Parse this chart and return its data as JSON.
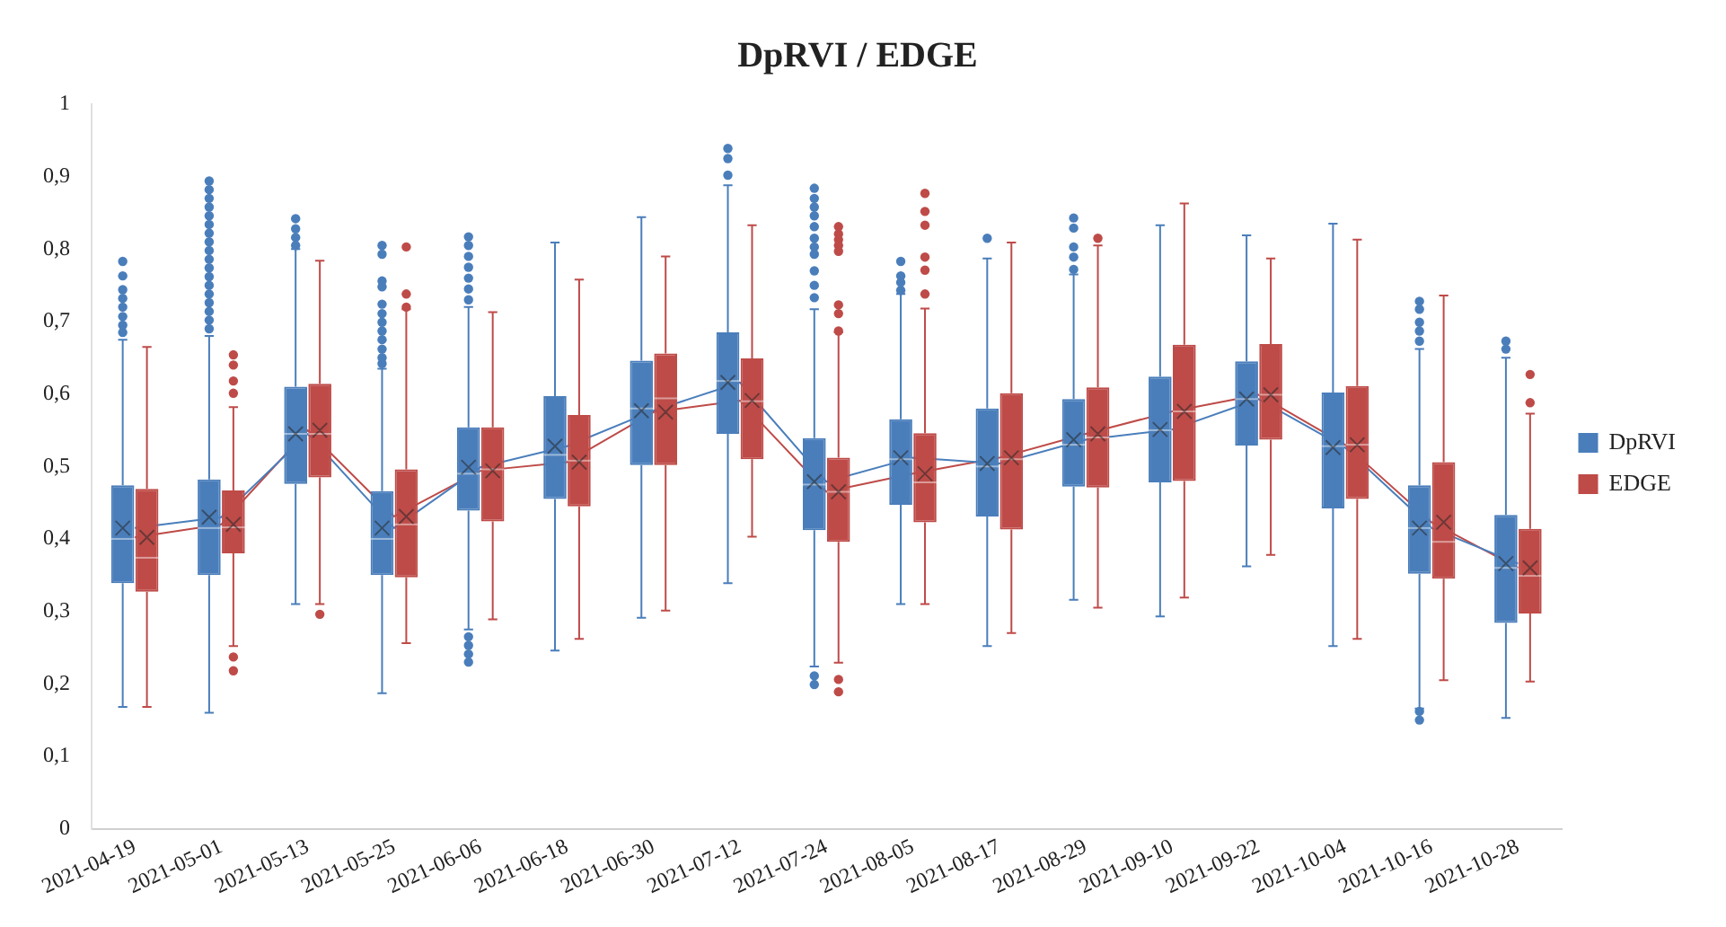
{
  "chart_data": {
    "type": "box",
    "title": "DpRVI / EDGE",
    "categories": [
      "2021-04-19",
      "2021-05-01",
      "2021-05-13",
      "2021-05-25",
      "2021-06-06",
      "2021-06-18",
      "2021-06-30",
      "2021-07-12",
      "2021-07-24",
      "2021-08-05",
      "2021-08-17",
      "2021-08-29",
      "2021-09-10",
      "2021-09-22",
      "2021-10-04",
      "2021-10-16",
      "2021-10-28"
    ],
    "ylim": [
      0,
      1
    ],
    "yticks": [
      0,
      {
        "value": 0.1,
        "label": "0,1"
      },
      {
        "value": 0.2,
        "label": "0,2"
      },
      {
        "value": 0.3,
        "label": "0,3"
      },
      {
        "value": 0.4,
        "label": "0,4"
      },
      {
        "value": 0.5,
        "label": "0,5"
      },
      {
        "value": 0.6,
        "label": "0,6"
      },
      {
        "value": 0.7,
        "label": "0,7"
      },
      {
        "value": 0.8,
        "label": "0,8"
      },
      {
        "value": 0.9,
        "label": "0,9"
      },
      1
    ],
    "grid": false,
    "legend": "right",
    "series": [
      {
        "name": "DpRVI",
        "color": "#4a7ebb",
        "boxes": [
          {
            "low": 0.168,
            "q1": 0.339,
            "median": 0.4,
            "q3": 0.474,
            "high": 0.675,
            "mean": 0.415,
            "outliers": [
              0.783,
              0.763,
              0.744,
              0.732,
              0.72,
              0.707,
              0.695,
              0.685
            ]
          },
          {
            "low": 0.16,
            "q1": 0.35,
            "median": 0.415,
            "q3": 0.482,
            "high": 0.68,
            "mean": 0.43,
            "outliers": [
              0.894,
              0.882,
              0.87,
              0.858,
              0.846,
              0.834,
              0.822,
              0.81,
              0.798,
              0.786,
              0.774,
              0.762,
              0.75,
              0.738,
              0.726,
              0.714,
              0.702,
              0.69
            ]
          },
          {
            "low": 0.31,
            "q1": 0.476,
            "median": 0.545,
            "q3": 0.61,
            "high": 0.8,
            "mean": 0.545,
            "outliers": [
              0.842,
              0.828,
              0.816,
              0.805
            ]
          },
          {
            "low": 0.187,
            "q1": 0.35,
            "median": 0.4,
            "q3": 0.466,
            "high": 0.635,
            "mean": 0.415,
            "outliers": [
              0.805,
              0.793,
              0.756,
              0.748,
              0.724,
              0.711,
              0.699,
              0.687,
              0.675,
              0.662,
              0.65,
              0.642
            ]
          },
          {
            "low": 0.275,
            "q1": 0.439,
            "median": 0.49,
            "q3": 0.554,
            "high": 0.72,
            "mean": 0.499,
            "outliers": [
              0.817,
              0.805,
              0.79,
              0.775,
              0.76,
              0.745,
              0.73,
              0.265,
              0.253,
              0.241,
              0.23
            ]
          },
          {
            "low": 0.246,
            "q1": 0.455,
            "median": 0.516,
            "q3": 0.597,
            "high": 0.809,
            "mean": 0.528
          },
          {
            "low": 0.291,
            "q1": 0.502,
            "median": 0.58,
            "q3": 0.646,
            "high": 0.844,
            "mean": 0.577
          },
          {
            "low": 0.339,
            "q1": 0.545,
            "median": 0.618,
            "q3": 0.685,
            "high": 0.888,
            "mean": 0.616,
            "outliers": [
              0.939,
              0.925,
              0.902
            ]
          },
          {
            "low": 0.224,
            "q1": 0.412,
            "median": 0.475,
            "q3": 0.539,
            "high": 0.717,
            "mean": 0.479,
            "outliers": [
              0.884,
              0.87,
              0.858,
              0.846,
              0.831,
              0.815,
              0.803,
              0.793,
              0.77,
              0.75,
              0.733,
              0.211,
              0.199
            ]
          },
          {
            "low": 0.31,
            "q1": 0.447,
            "median": 0.51,
            "q3": 0.565,
            "high": 0.738,
            "mean": 0.512,
            "outliers": [
              0.783,
              0.763,
              0.754,
              0.743
            ]
          },
          {
            "low": 0.252,
            "q1": 0.431,
            "median": 0.5,
            "q3": 0.58,
            "high": 0.787,
            "mean": 0.504,
            "outliers": [
              0.815
            ]
          },
          {
            "low": 0.316,
            "q1": 0.472,
            "median": 0.53,
            "q3": 0.593,
            "high": 0.765,
            "mean": 0.537,
            "outliers": [
              0.843,
              0.829,
              0.803,
              0.789,
              0.772
            ]
          },
          {
            "low": 0.293,
            "q1": 0.478,
            "median": 0.55,
            "q3": 0.624,
            "high": 0.833,
            "mean": 0.551
          },
          {
            "low": 0.362,
            "q1": 0.529,
            "median": 0.593,
            "q3": 0.645,
            "high": 0.819,
            "mean": 0.593
          },
          {
            "low": 0.252,
            "q1": 0.442,
            "median": 0.528,
            "q3": 0.602,
            "high": 0.835,
            "mean": 0.526
          },
          {
            "low": 0.166,
            "q1": 0.352,
            "median": 0.415,
            "q3": 0.474,
            "high": 0.662,
            "mean": 0.415,
            "outliers": [
              0.728,
              0.717,
              0.699,
              0.687,
              0.673,
              0.162,
              0.15
            ]
          },
          {
            "low": 0.153,
            "q1": 0.284,
            "median": 0.36,
            "q3": 0.433,
            "high": 0.65,
            "mean": 0.366,
            "outliers": [
              0.673,
              0.662
            ]
          }
        ]
      },
      {
        "name": "EDGE",
        "color": "#be4b48",
        "boxes": [
          {
            "low": 0.168,
            "q1": 0.327,
            "median": 0.374,
            "q3": 0.469,
            "high": 0.665,
            "mean": 0.402
          },
          {
            "low": 0.252,
            "q1": 0.38,
            "median": 0.416,
            "q3": 0.467,
            "high": 0.582,
            "mean": 0.42,
            "outliers": [
              0.654,
              0.64,
              0.618,
              0.601,
              0.237,
              0.218
            ]
          },
          {
            "low": 0.31,
            "q1": 0.485,
            "median": 0.545,
            "q3": 0.614,
            "high": 0.784,
            "mean": 0.55,
            "outliers": [
              0.296
            ]
          },
          {
            "low": 0.256,
            "q1": 0.347,
            "median": 0.42,
            "q3": 0.496,
            "high": 0.717,
            "mean": 0.431,
            "outliers": [
              0.803,
              0.738,
              0.72
            ]
          },
          {
            "low": 0.289,
            "q1": 0.424,
            "median": 0.496,
            "q3": 0.554,
            "high": 0.713,
            "mean": 0.494
          },
          {
            "low": 0.262,
            "q1": 0.445,
            "median": 0.508,
            "q3": 0.571,
            "high": 0.758,
            "mean": 0.506
          },
          {
            "low": 0.301,
            "q1": 0.502,
            "median": 0.594,
            "q3": 0.656,
            "high": 0.79,
            "mean": 0.575
          },
          {
            "low": 0.403,
            "q1": 0.51,
            "median": 0.59,
            "q3": 0.649,
            "high": 0.833,
            "mean": 0.591
          },
          {
            "low": 0.229,
            "q1": 0.396,
            "median": 0.465,
            "q3": 0.512,
            "high": 0.685,
            "mean": 0.465,
            "outliers": [
              0.831,
              0.821,
              0.813,
              0.805,
              0.797,
              0.723,
              0.711,
              0.687,
              0.206,
              0.189
            ]
          },
          {
            "low": 0.31,
            "q1": 0.423,
            "median": 0.478,
            "q3": 0.546,
            "high": 0.718,
            "mean": 0.49,
            "outliers": [
              0.877,
              0.852,
              0.833,
              0.789,
              0.771,
              0.738
            ]
          },
          {
            "low": 0.27,
            "q1": 0.413,
            "median": 0.51,
            "q3": 0.601,
            "high": 0.809,
            "mean": 0.512
          },
          {
            "low": 0.305,
            "q1": 0.471,
            "median": 0.54,
            "q3": 0.609,
            "high": 0.805,
            "mean": 0.545,
            "outliers": [
              0.815
            ]
          },
          {
            "low": 0.319,
            "q1": 0.48,
            "median": 0.576,
            "q3": 0.668,
            "high": 0.863,
            "mean": 0.576
          },
          {
            "low": 0.378,
            "q1": 0.537,
            "median": 0.599,
            "q3": 0.669,
            "high": 0.787,
            "mean": 0.599
          },
          {
            "low": 0.262,
            "q1": 0.455,
            "median": 0.53,
            "q3": 0.611,
            "high": 0.813,
            "mean": 0.53
          },
          {
            "low": 0.205,
            "q1": 0.345,
            "median": 0.396,
            "q3": 0.506,
            "high": 0.736,
            "mean": 0.423
          },
          {
            "low": 0.203,
            "q1": 0.297,
            "median": 0.349,
            "q3": 0.414,
            "high": 0.573,
            "mean": 0.36,
            "outliers": [
              0.627,
              0.588
            ]
          }
        ]
      },
      {
        "type": "line",
        "color": "#4a7ebb",
        "values": [
          0.415,
          0.43,
          0.545,
          0.415,
          0.499,
          0.528,
          0.577,
          0.616,
          0.479,
          0.512,
          0.504,
          0.537,
          0.551,
          0.593,
          0.526,
          0.415,
          0.366
        ]
      },
      {
        "type": "line",
        "color": "#be4b48",
        "values": [
          0.402,
          0.42,
          0.55,
          0.431,
          0.494,
          0.506,
          0.575,
          0.591,
          0.465,
          0.49,
          0.512,
          0.545,
          0.576,
          0.599,
          0.53,
          0.423,
          0.36
        ]
      }
    ]
  }
}
